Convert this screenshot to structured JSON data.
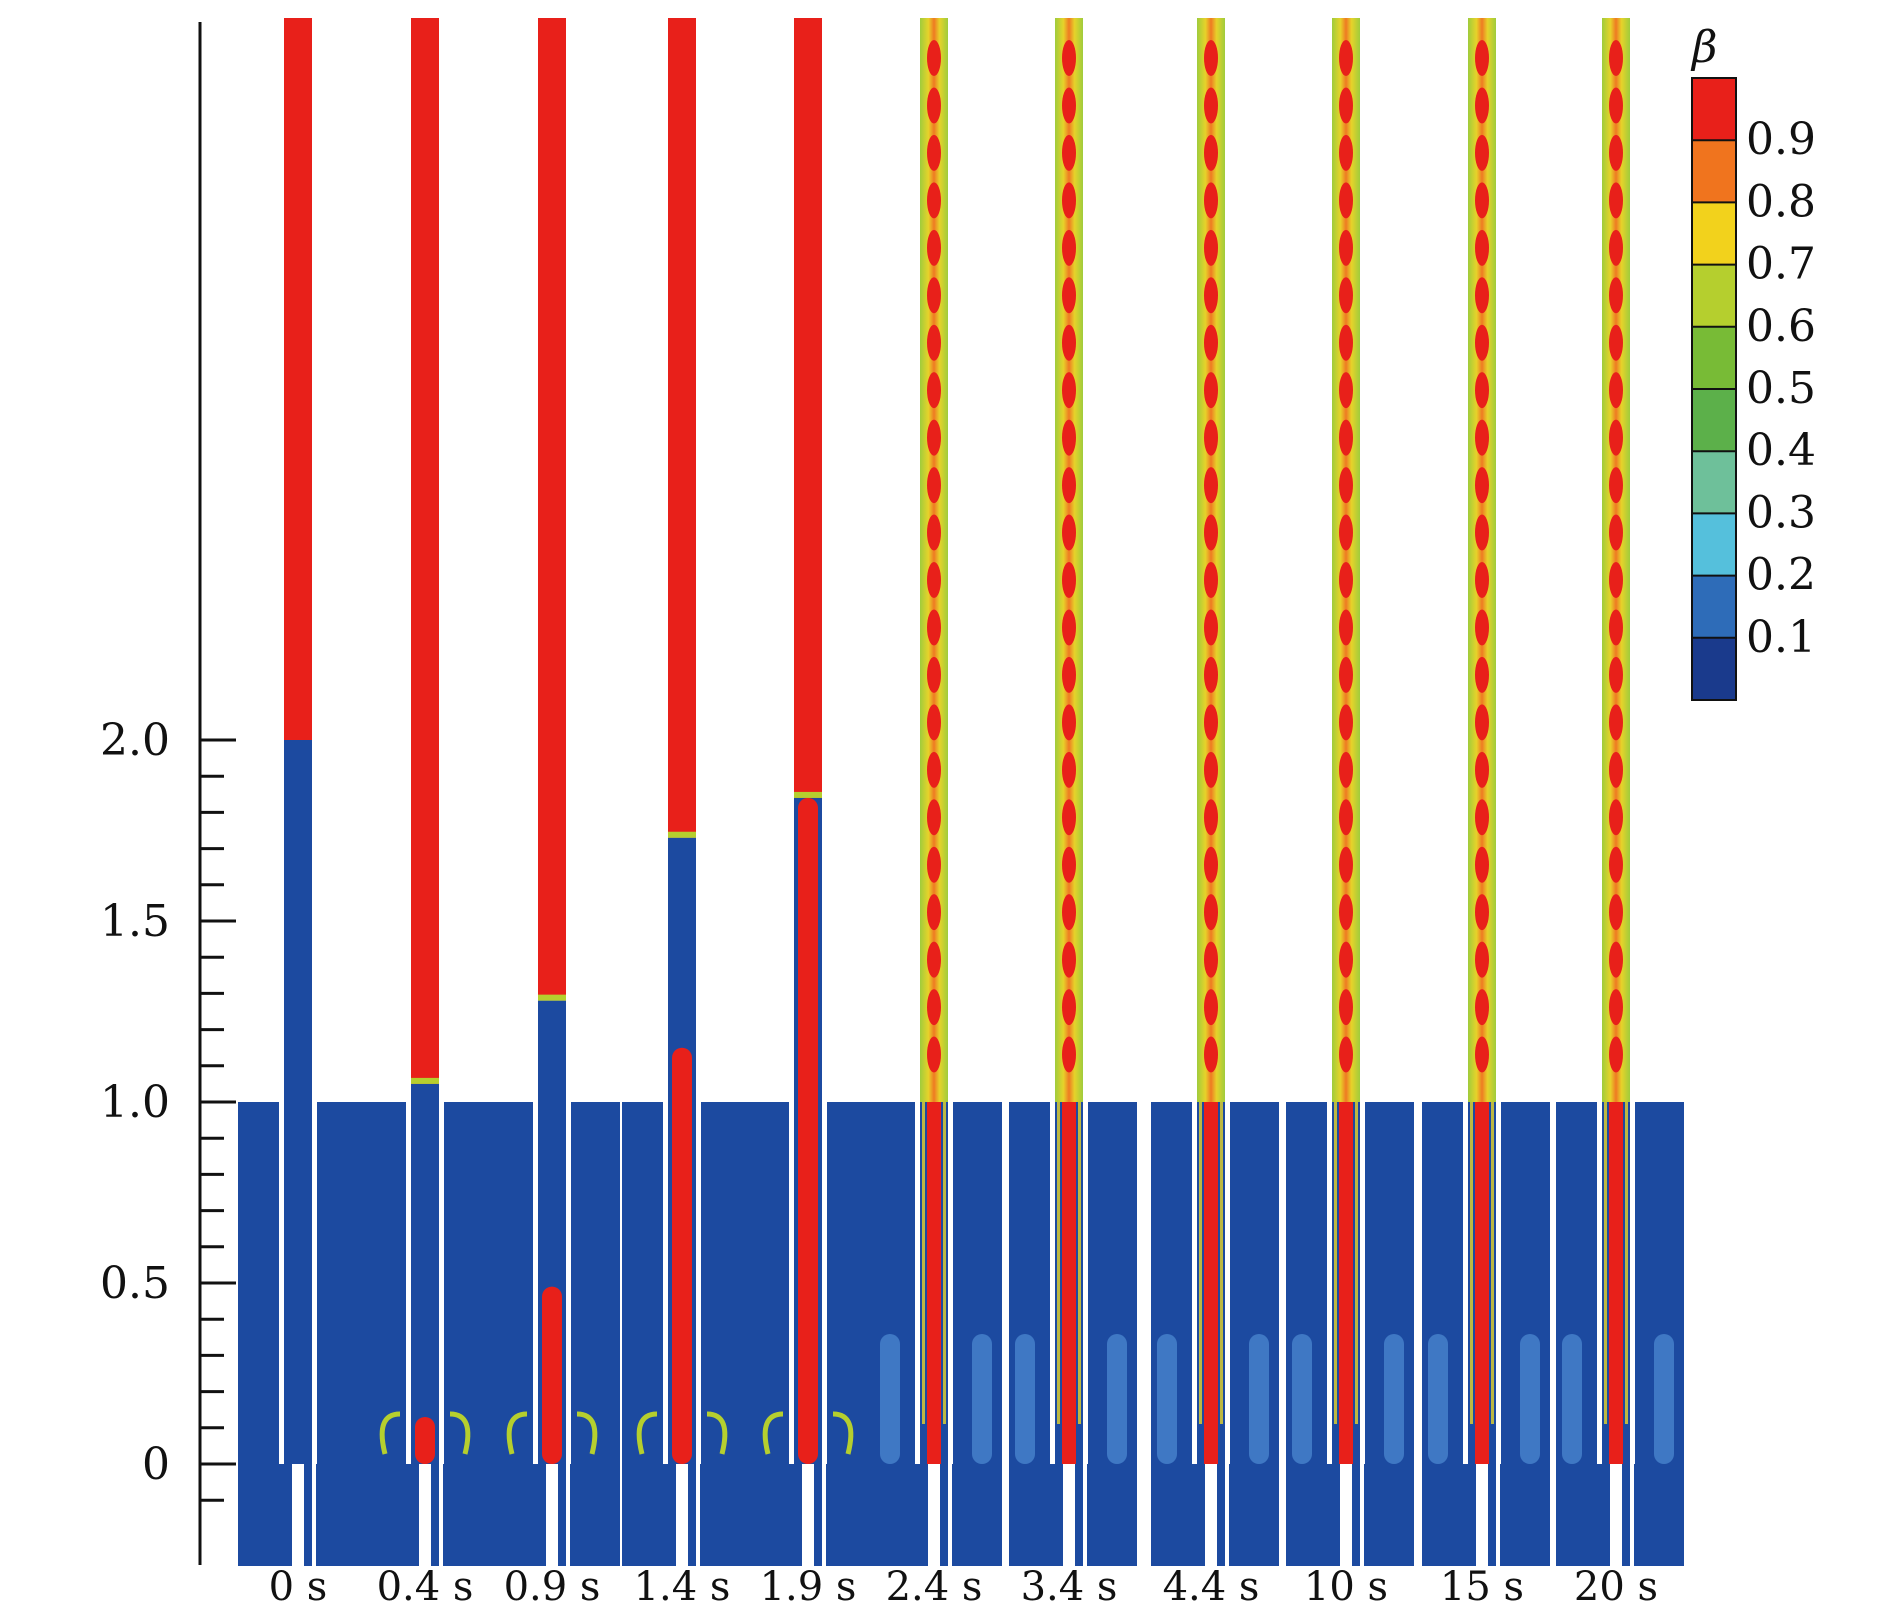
{
  "figure": {
    "y_axis": {
      "ticks": [
        {
          "value": 0,
          "label": "0"
        },
        {
          "value": 0.5,
          "label": "0.5"
        },
        {
          "value": 1.0,
          "label": "1.0"
        },
        {
          "value": 1.5,
          "label": "1.5"
        },
        {
          "value": 2.0,
          "label": "2.0"
        }
      ],
      "range": [
        -0.15,
        2.0
      ],
      "minor_tick_step": 0.1
    },
    "panels": [
      {
        "time": "0 s",
        "front_height": 0,
        "air_top": 2.0,
        "rising": false
      },
      {
        "time": "0.4 s",
        "front_height": 0.13,
        "air_top": 1.05,
        "rising": false
      },
      {
        "time": "0.9 s",
        "front_height": 0.49,
        "air_top": 1.28,
        "rising": false
      },
      {
        "time": "1.4 s",
        "front_height": 1.15,
        "air_top": 1.73,
        "rising": false
      },
      {
        "time": "1.9 s",
        "front_height": 1.84,
        "air_top": 1.84,
        "rising": false
      },
      {
        "time": "2.4 s",
        "front_height": 2.0,
        "air_top": 2.0,
        "rising": true
      },
      {
        "time": "3.4 s",
        "front_height": 2.0,
        "air_top": 2.0,
        "rising": true
      },
      {
        "time": "4.4 s",
        "front_height": 2.0,
        "air_top": 2.0,
        "rising": true
      },
      {
        "time": "10 s",
        "front_height": 2.0,
        "air_top": 2.0,
        "rising": true
      },
      {
        "time": "15 s",
        "front_height": 2.0,
        "air_top": 2.0,
        "rising": true
      },
      {
        "time": "20 s",
        "front_height": 2.0,
        "air_top": 2.0,
        "rising": true
      }
    ],
    "colorbar": {
      "symbol": "β",
      "labels": [
        "0.9",
        "0.8",
        "0.7",
        "0.6",
        "0.5",
        "0.4",
        "0.3",
        "0.2",
        "0.1"
      ],
      "colors": [
        "#e8201a",
        "#f0741e",
        "#f2d21c",
        "#b5cf2e",
        "#78bb36",
        "#5cb04a",
        "#6ec09a",
        "#55c0dc",
        "#2e6cb8",
        "#1a3a8c"
      ]
    },
    "palette": {
      "water": "#1c4aa0",
      "air": "#e8201a",
      "mix_light": "#a9cf3a",
      "mix_yellow": "#e6d32a",
      "mix_orange": "#ef7a22",
      "bubble_edge": "#56bfe0"
    }
  }
}
